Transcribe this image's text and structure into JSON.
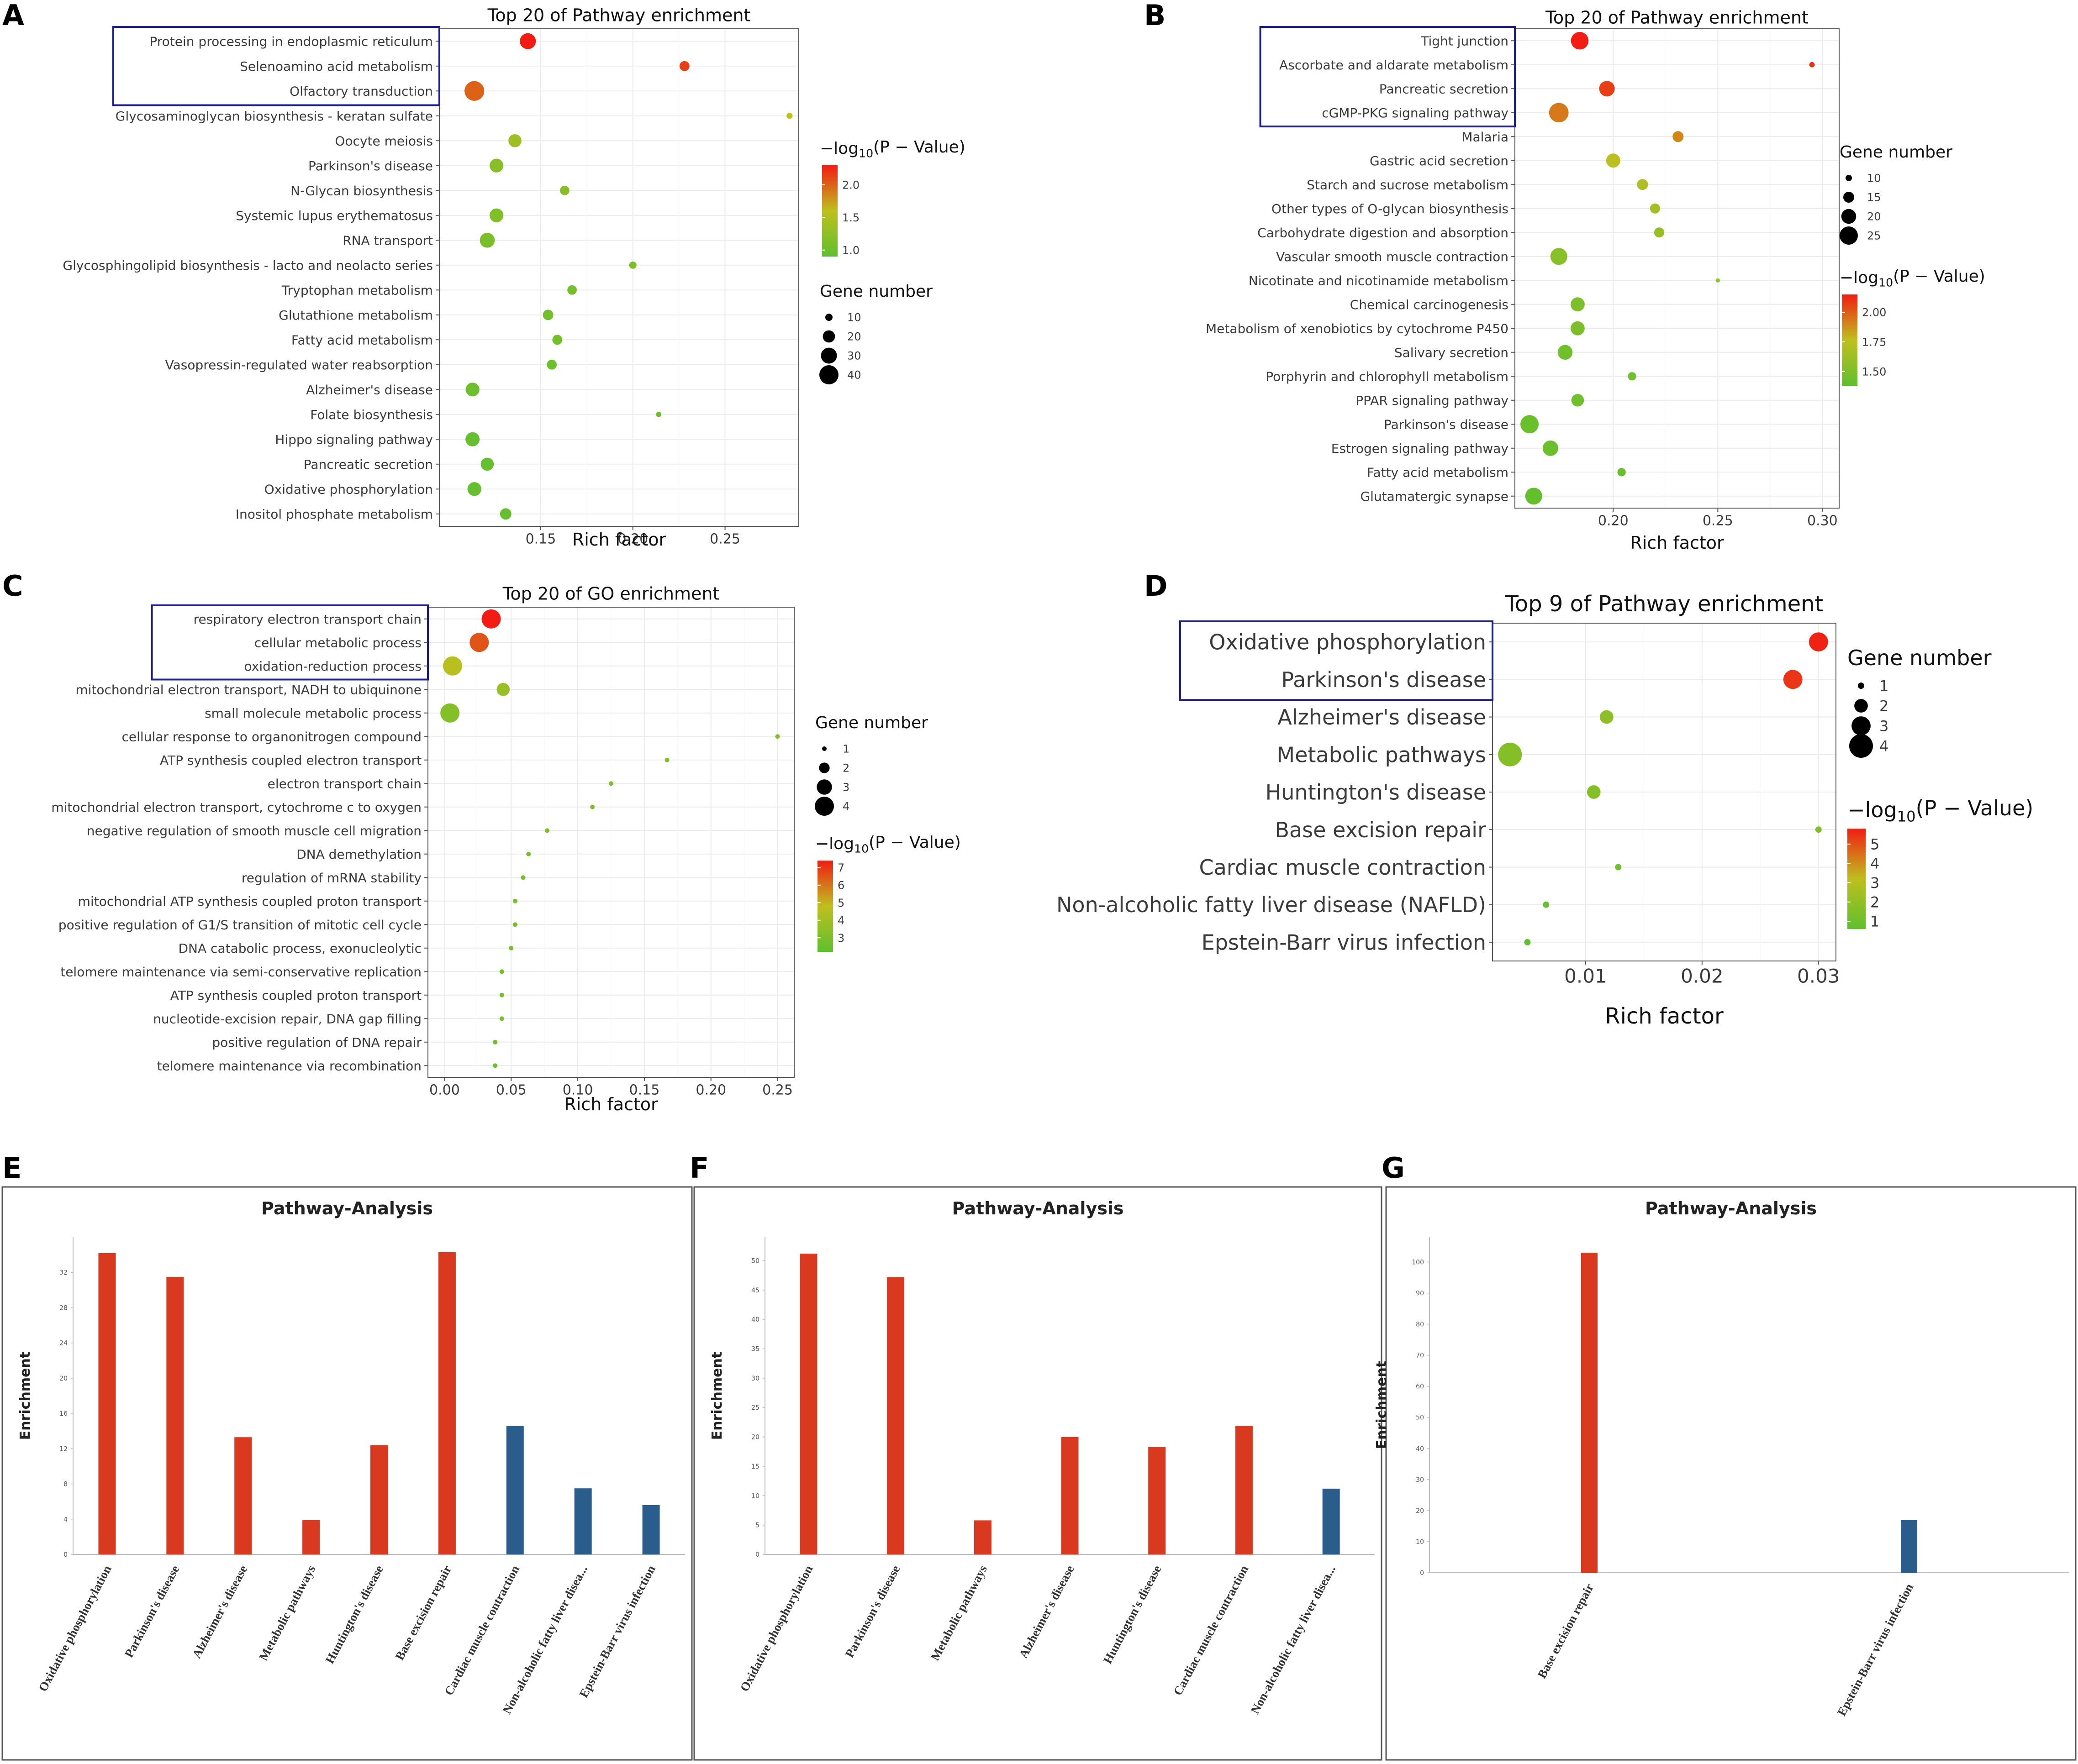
{
  "panels": [
    "A",
    "B",
    "C",
    "D",
    "E",
    "F",
    "G"
  ],
  "chart_data": [
    {
      "panel": "A",
      "type": "scatter",
      "title": "Top 20 of Pathway enrichment",
      "xlabel": "Rich factor",
      "ylabel": "",
      "xlim": [
        0.095,
        0.29
      ],
      "xticks": [
        0.15,
        0.2,
        0.25
      ],
      "xtick_labels": [
        "0.15",
        "0.20",
        "0.25"
      ],
      "color_scale": {
        "label": "−log10(P − Value)",
        "min": 0.9,
        "max": 2.3,
        "ticks": [
          1.0,
          1.5,
          2.0
        ],
        "tick_labels": [
          "1.0",
          "1.5",
          "2.0"
        ]
      },
      "size_legend": {
        "label": "Gene number",
        "values": [
          10,
          20,
          30,
          40
        ],
        "labels": [
          "10",
          "20",
          "30",
          "40"
        ]
      },
      "highlighted": [
        "Protein processing in endoplasmic reticulum",
        "Selenoamino acid metabolism",
        "Olfactory transduction"
      ],
      "points": [
        {
          "term": "Protein processing in endoplasmic reticulum",
          "x": 0.143,
          "gene": 30,
          "p": 2.3
        },
        {
          "term": "Selenoamino acid metabolism",
          "x": 0.228,
          "gene": 15,
          "p": 2.15
        },
        {
          "term": "Olfactory transduction",
          "x": 0.114,
          "gene": 42,
          "p": 2.0
        },
        {
          "term": "Glycosaminoglycan biosynthesis - keratan sulfate",
          "x": 0.285,
          "gene": 8,
          "p": 1.6
        },
        {
          "term": "Oocyte meiosis",
          "x": 0.136,
          "gene": 22,
          "p": 1.35
        },
        {
          "term": "Parkinson's disease",
          "x": 0.126,
          "gene": 24,
          "p": 1.2
        },
        {
          "term": "N-Glycan biosynthesis",
          "x": 0.163,
          "gene": 14,
          "p": 1.2
        },
        {
          "term": "Systemic lupus erythematosus",
          "x": 0.126,
          "gene": 24,
          "p": 1.15
        },
        {
          "term": "RNA transport",
          "x": 0.121,
          "gene": 27,
          "p": 1.1
        },
        {
          "term": "Glycosphingolipid biosynthesis - lacto and neolacto series",
          "x": 0.2,
          "gene": 10,
          "p": 1.1
        },
        {
          "term": "Tryptophan metabolism",
          "x": 0.167,
          "gene": 14,
          "p": 1.05
        },
        {
          "term": "Glutathione metabolism",
          "x": 0.154,
          "gene": 16,
          "p": 1.05
        },
        {
          "term": "Fatty acid metabolism",
          "x": 0.159,
          "gene": 15,
          "p": 1.05
        },
        {
          "term": "Vasopressin-regulated water reabsorption",
          "x": 0.156,
          "gene": 15,
          "p": 1.0
        },
        {
          "term": "Alzheimer's disease",
          "x": 0.113,
          "gene": 24,
          "p": 1.0
        },
        {
          "term": "Folate biosynthesis",
          "x": 0.214,
          "gene": 7,
          "p": 1.0
        },
        {
          "term": "Hippo signaling pathway",
          "x": 0.113,
          "gene": 25,
          "p": 0.95
        },
        {
          "term": "Pancreatic secretion",
          "x": 0.121,
          "gene": 22,
          "p": 0.95
        },
        {
          "term": "Oxidative phosphorylation",
          "x": 0.114,
          "gene": 24,
          "p": 0.95
        },
        {
          "term": "Inositol phosphate metabolism",
          "x": 0.131,
          "gene": 18,
          "p": 0.95
        }
      ]
    },
    {
      "panel": "B",
      "type": "scatter",
      "title": "Top 20 of Pathway enrichment",
      "xlabel": "Rich factor",
      "ylabel": "",
      "xlim": [
        0.153,
        0.308
      ],
      "xticks": [
        0.2,
        0.25,
        0.3
      ],
      "xtick_labels": [
        "0.20",
        "0.25",
        "0.30"
      ],
      "color_scale": {
        "label": "−log10(P − Value)",
        "min": 1.38,
        "max": 2.15,
        "ticks": [
          1.5,
          1.75,
          2.0
        ],
        "tick_labels": [
          "1.50",
          "1.75",
          "2.00"
        ]
      },
      "size_legend": {
        "label": "Gene number",
        "values": [
          10,
          15,
          20,
          25
        ],
        "labels": [
          "10",
          "15",
          "20",
          "25"
        ]
      },
      "highlighted": [
        "Tight junction",
        "Ascorbate and aldarate metabolism",
        "Pancreatic secretion",
        "cGMP-PKG signaling pathway"
      ],
      "points": [
        {
          "term": "Tight junction",
          "x": 0.184,
          "gene": 24,
          "p": 2.15
        },
        {
          "term": "Ascorbate and aldarate metabolism",
          "x": 0.295,
          "gene": 9,
          "p": 2.1
        },
        {
          "term": "Pancreatic secretion",
          "x": 0.197,
          "gene": 21,
          "p": 2.07
        },
        {
          "term": "cGMP-PKG signaling pathway",
          "x": 0.174,
          "gene": 27,
          "p": 1.93
        },
        {
          "term": "Malaria",
          "x": 0.231,
          "gene": 15,
          "p": 1.9
        },
        {
          "term": "Gastric acid secretion",
          "x": 0.2,
          "gene": 19,
          "p": 1.75
        },
        {
          "term": "Starch and sucrose metabolism",
          "x": 0.214,
          "gene": 15,
          "p": 1.7
        },
        {
          "term": "Other types of O-glycan biosynthesis",
          "x": 0.22,
          "gene": 14,
          "p": 1.65
        },
        {
          "term": "Carbohydrate digestion and absorption",
          "x": 0.222,
          "gene": 14,
          "p": 1.6
        },
        {
          "term": "Vascular smooth muscle contraction",
          "x": 0.174,
          "gene": 23,
          "p": 1.55
        },
        {
          "term": "Nicotinate and nicotinamide metabolism",
          "x": 0.25,
          "gene": 8,
          "p": 1.55
        },
        {
          "term": "Chemical carcinogenesis",
          "x": 0.183,
          "gene": 19,
          "p": 1.5
        },
        {
          "term": "Metabolism of xenobiotics by cytochrome P450",
          "x": 0.183,
          "gene": 19,
          "p": 1.5
        },
        {
          "term": "Salivary secretion",
          "x": 0.177,
          "gene": 20,
          "p": 1.45
        },
        {
          "term": "Porphyrin and chlorophyll metabolism",
          "x": 0.209,
          "gene": 12,
          "p": 1.45
        },
        {
          "term": "PPAR signaling pathway",
          "x": 0.183,
          "gene": 17,
          "p": 1.45
        },
        {
          "term": "Parkinson's disease",
          "x": 0.16,
          "gene": 25,
          "p": 1.43
        },
        {
          "term": "Estrogen signaling pathway",
          "x": 0.17,
          "gene": 21,
          "p": 1.43
        },
        {
          "term": "Fatty acid metabolism",
          "x": 0.204,
          "gene": 12,
          "p": 1.42
        },
        {
          "term": "Glutamatergic synapse",
          "x": 0.162,
          "gene": 23,
          "p": 1.4
        }
      ]
    },
    {
      "panel": "C",
      "type": "scatter",
      "title": "Top 20 of GO enrichment",
      "xlabel": "Rich factor",
      "ylabel": "",
      "xlim": [
        -0.0125,
        0.2625
      ],
      "xticks": [
        0.0,
        0.05,
        0.1,
        0.15,
        0.2,
        0.25
      ],
      "xtick_labels": [
        "0.00",
        "0.05",
        "0.10",
        "0.15",
        "0.20",
        "0.25"
      ],
      "color_scale": {
        "label": "−log10(P − Value)",
        "min": 2.2,
        "max": 7.4,
        "ticks": [
          3,
          4,
          5,
          6,
          7
        ],
        "tick_labels": [
          "3",
          "4",
          "5",
          "6",
          "7"
        ]
      },
      "size_legend": {
        "label": "Gene number",
        "values": [
          1,
          2,
          3,
          4
        ],
        "labels": [
          "1",
          "2",
          "3",
          "4"
        ]
      },
      "highlighted": [
        "respiratory electron transport chain",
        "cellular metabolic process",
        "oxidation-reduction process"
      ],
      "points": [
        {
          "term": "respiratory electron transport chain",
          "x": 0.035,
          "gene": 4,
          "p": 7.4
        },
        {
          "term": "cellular metabolic process",
          "x": 0.026,
          "gene": 4,
          "p": 6.5
        },
        {
          "term": "oxidation-reduction process",
          "x": 0.006,
          "gene": 4,
          "p": 4.6
        },
        {
          "term": "mitochondrial electron transport, NADH to ubiquinone",
          "x": 0.044,
          "gene": 2.5,
          "p": 3.8
        },
        {
          "term": "small molecule metabolic process",
          "x": 0.004,
          "gene": 4,
          "p": 3.2
        },
        {
          "term": "cellular response to organonitrogen compound",
          "x": 0.25,
          "gene": 1,
          "p": 3.0
        },
        {
          "term": "ATP synthesis coupled electron transport",
          "x": 0.167,
          "gene": 1,
          "p": 3.0
        },
        {
          "term": "electron transport chain",
          "x": 0.125,
          "gene": 1,
          "p": 3.0
        },
        {
          "term": "mitochondrial electron transport, cytochrome c to oxygen",
          "x": 0.111,
          "gene": 1,
          "p": 3.0
        },
        {
          "term": "negative regulation of smooth muscle cell migration",
          "x": 0.077,
          "gene": 1,
          "p": 2.9
        },
        {
          "term": "DNA demethylation",
          "x": 0.063,
          "gene": 1,
          "p": 2.9
        },
        {
          "term": "regulation of mRNA stability",
          "x": 0.059,
          "gene": 1,
          "p": 2.8
        },
        {
          "term": "mitochondrial ATP synthesis coupled proton transport",
          "x": 0.053,
          "gene": 1,
          "p": 2.8
        },
        {
          "term": "positive regulation of G1/S transition of mitotic cell cycle",
          "x": 0.053,
          "gene": 1,
          "p": 2.8
        },
        {
          "term": "DNA catabolic process, exonucleolytic",
          "x": 0.05,
          "gene": 1,
          "p": 2.8
        },
        {
          "term": "telomere maintenance via semi-conservative replication",
          "x": 0.043,
          "gene": 1,
          "p": 2.7
        },
        {
          "term": "ATP synthesis coupled proton transport",
          "x": 0.043,
          "gene": 1,
          "p": 2.7
        },
        {
          "term": "nucleotide-excision repair, DNA gap filling",
          "x": 0.043,
          "gene": 1,
          "p": 2.7
        },
        {
          "term": "positive regulation of DNA repair",
          "x": 0.038,
          "gene": 1,
          "p": 2.6
        },
        {
          "term": "telomere maintenance via recombination",
          "x": 0.038,
          "gene": 1,
          "p": 2.6
        }
      ]
    },
    {
      "panel": "D",
      "type": "scatter",
      "title": "Top 9 of Pathway enrichment",
      "xlabel": "Rich factor",
      "ylabel": "",
      "xlim": [
        0.002,
        0.0315
      ],
      "xticks": [
        0.01,
        0.02,
        0.03
      ],
      "xtick_labels": [
        "0.01",
        "0.02",
        "0.03"
      ],
      "color_scale": {
        "label": "−log10(P − Value)",
        "min": 0.6,
        "max": 5.8,
        "ticks": [
          1,
          2,
          3,
          4,
          5
        ],
        "tick_labels": [
          "1",
          "2",
          "3",
          "4",
          "5"
        ]
      },
      "size_legend": {
        "label": "Gene number",
        "values": [
          1,
          2,
          3,
          4
        ],
        "labels": [
          "1",
          "2",
          "3",
          "4"
        ]
      },
      "highlighted": [
        "Oxidative phosphorylation",
        "Parkinson's disease"
      ],
      "points": [
        {
          "term": "Oxidative phosphorylation",
          "x": 0.03,
          "gene": 3,
          "p": 5.7
        },
        {
          "term": "Parkinson's disease",
          "x": 0.0278,
          "gene": 3,
          "p": 5.4
        },
        {
          "term": "Alzheimer's disease",
          "x": 0.0118,
          "gene": 2,
          "p": 1.9
        },
        {
          "term": "Metabolic pathways",
          "x": 0.0035,
          "gene": 4,
          "p": 1.6
        },
        {
          "term": "Huntington's disease",
          "x": 0.0107,
          "gene": 2,
          "p": 1.6
        },
        {
          "term": "Base excision repair",
          "x": 0.03,
          "gene": 1,
          "p": 1.6
        },
        {
          "term": "Cardiac muscle contraction",
          "x": 0.0128,
          "gene": 1,
          "p": 1.0
        },
        {
          "term": "Non-alcoholic fatty liver disease (NAFLD)",
          "x": 0.0066,
          "gene": 1,
          "p": 0.8
        },
        {
          "term": "Epstein-Barr virus infection",
          "x": 0.005,
          "gene": 1,
          "p": 0.7
        }
      ]
    },
    {
      "panel": "E",
      "type": "bar",
      "title": "Pathway-Analysis",
      "xlabel": "",
      "ylabel": "Enrichment",
      "ylim": [
        0,
        36
      ],
      "yticks": [
        0,
        4,
        8,
        12,
        16,
        20,
        24,
        28,
        32
      ],
      "ytick_labels": [
        "0",
        "4",
        "8",
        "12",
        "16",
        "20",
        "24",
        "28",
        "32"
      ],
      "categories": [
        "Oxidative phosphorylation",
        "Parkinson's disease",
        "Alzheimer's disease",
        "Metabolic pathways",
        "Huntington's disease",
        "Base excision repair",
        "Cardiac muscle contraction",
        "Non-alcoholic fatty liver disea...",
        "Epstein-Barr virus infection"
      ],
      "values": [
        34.2,
        31.5,
        13.3,
        3.9,
        12.4,
        34.3,
        14.6,
        7.5,
        5.6
      ],
      "bar_colors": [
        "#d9391f",
        "#d9391f",
        "#d9391f",
        "#d9391f",
        "#d9391f",
        "#d9391f",
        "#2a5d8c",
        "#2a5d8c",
        "#2a5d8c"
      ]
    },
    {
      "panel": "F",
      "type": "bar",
      "title": "Pathway-Analysis",
      "xlabel": "",
      "ylabel": "Enrichment",
      "ylim": [
        0,
        54
      ],
      "yticks": [
        0,
        5,
        10,
        15,
        20,
        25,
        30,
        35,
        40,
        45,
        50
      ],
      "ytick_labels": [
        "0",
        "5",
        "10",
        "15",
        "20",
        "25",
        "30",
        "35",
        "40",
        "45",
        "50"
      ],
      "categories": [
        "Oxidative phosphorylation",
        "Parkinson's disease",
        "Metabolic pathways",
        "Alzheimer's disease",
        "Huntington's disease",
        "Cardiac muscle contraction",
        "Non-alcoholic fatty liver disea..."
      ],
      "values": [
        51.2,
        47.2,
        5.8,
        20.0,
        18.3,
        21.9,
        11.2
      ],
      "bar_colors": [
        "#d9391f",
        "#d9391f",
        "#d9391f",
        "#d9391f",
        "#d9391f",
        "#d9391f",
        "#2a5d8c"
      ]
    },
    {
      "panel": "G",
      "type": "bar",
      "title": "Pathway-Analysis",
      "xlabel": "",
      "ylabel": "Enrichment",
      "ylim": [
        0,
        108
      ],
      "yticks": [
        0,
        10,
        20,
        30,
        40,
        50,
        60,
        70,
        80,
        90,
        100
      ],
      "ytick_labels": [
        "0",
        "10",
        "20",
        "30",
        "40",
        "50",
        "60",
        "70",
        "80",
        "90",
        "100"
      ],
      "categories": [
        "Base excision repair",
        "Epstein-Barr virus infection"
      ],
      "values": [
        103.0,
        17.0
      ],
      "bar_colors": [
        "#d9391f",
        "#2a5d8c"
      ]
    }
  ]
}
